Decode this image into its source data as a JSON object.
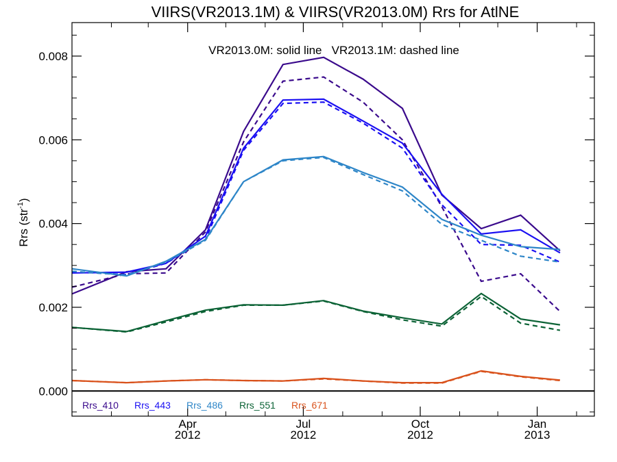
{
  "chart_data": {
    "type": "line",
    "title": "VIIRS(VR2013.1M) & VIIRS(VR2013.0M)  Rrs for AtlNE",
    "annotation": "VR2013.0M: solid line   VR2013.1M: dashed line",
    "ylabel": "Rrs (str",
    "ylabel_sup": "-1",
    "ylabel_close": ")",
    "xlim": [
      "2012-01-01",
      "2013-02-15"
    ],
    "ylim": [
      -0.0006,
      0.0088
    ],
    "grid": false,
    "x_ticks": [
      {
        "date": "2012-04-01",
        "line1": "Apr",
        "line2": "2012"
      },
      {
        "date": "2012-07-01",
        "line1": "Jul",
        "line2": "2012"
      },
      {
        "date": "2012-10-01",
        "line1": "Oct",
        "line2": "2012"
      },
      {
        "date": "2013-01-01",
        "line1": "Jan",
        "line2": "2013"
      }
    ],
    "y_ticks": [
      {
        "value": 0.0,
        "label": "0.000"
      },
      {
        "value": 0.002,
        "label": "0.002"
      },
      {
        "value": 0.004,
        "label": "0.004"
      },
      {
        "value": 0.006,
        "label": "0.006"
      },
      {
        "value": 0.008,
        "label": "0.008"
      }
    ],
    "legend_placement": "bottom-left",
    "x": [
      "2012-01-01",
      "2012-02-13",
      "2012-03-15",
      "2012-04-15",
      "2012-05-15",
      "2012-06-15",
      "2012-07-17",
      "2012-08-17",
      "2012-09-17",
      "2012-10-18",
      "2012-11-18",
      "2012-12-19",
      "2013-01-19"
    ],
    "series": [
      {
        "name": "Rrs_410",
        "color": "#3a0a8c",
        "solid": [
          0.00232,
          0.00285,
          0.00292,
          0.00385,
          0.0062,
          0.0078,
          0.00797,
          0.00745,
          0.00675,
          0.00468,
          0.00388,
          0.0042,
          0.00335
        ],
        "dashed": [
          0.00248,
          0.0028,
          0.00282,
          0.0038,
          0.00595,
          0.0074,
          0.0075,
          0.0069,
          0.006,
          0.0044,
          0.00262,
          0.0028,
          0.0019
        ]
      },
      {
        "name": "Rrs_443",
        "color": "#1a0ff2",
        "solid": [
          0.00282,
          0.00284,
          0.00305,
          0.0037,
          0.0058,
          0.00695,
          0.00697,
          0.00645,
          0.00592,
          0.0047,
          0.00375,
          0.00385,
          0.0033
        ],
        "dashed": [
          0.00285,
          0.00278,
          0.00305,
          0.00362,
          0.00575,
          0.00687,
          0.0069,
          0.0064,
          0.0058,
          0.00445,
          0.0035,
          0.00348,
          0.00308
        ]
      },
      {
        "name": "Rrs_486",
        "color": "#2e86c8",
        "solid": [
          0.00292,
          0.00275,
          0.0031,
          0.00362,
          0.005,
          0.00552,
          0.0056,
          0.00522,
          0.00487,
          0.0041,
          0.00372,
          0.00345,
          0.00338
        ],
        "dashed": [
          0.00286,
          0.00277,
          0.00308,
          0.0036,
          0.005,
          0.0055,
          0.00558,
          0.00517,
          0.00478,
          0.00398,
          0.0036,
          0.00322,
          0.00308
        ]
      },
      {
        "name": "Rrs_551",
        "color": "#0b6235",
        "solid": [
          0.00152,
          0.00142,
          0.00168,
          0.00193,
          0.00206,
          0.00205,
          0.00216,
          0.00191,
          0.00175,
          0.0016,
          0.00233,
          0.00172,
          0.00158
        ],
        "dashed": [
          0.00152,
          0.00141,
          0.00165,
          0.0019,
          0.00205,
          0.00205,
          0.00215,
          0.0019,
          0.0017,
          0.00155,
          0.00226,
          0.00162,
          0.00145
        ]
      },
      {
        "name": "Rrs_671",
        "color": "#d9521c",
        "solid": [
          0.00025,
          0.0002,
          0.00024,
          0.00027,
          0.00025,
          0.00024,
          0.0003,
          0.00024,
          0.0002,
          0.0002,
          0.00048,
          0.00035,
          0.00026
        ],
        "dashed": [
          0.00025,
          0.0002,
          0.00024,
          0.00027,
          0.00025,
          0.00024,
          0.00029,
          0.00024,
          0.00019,
          0.00019,
          0.00047,
          0.00034,
          0.00025
        ]
      }
    ]
  }
}
